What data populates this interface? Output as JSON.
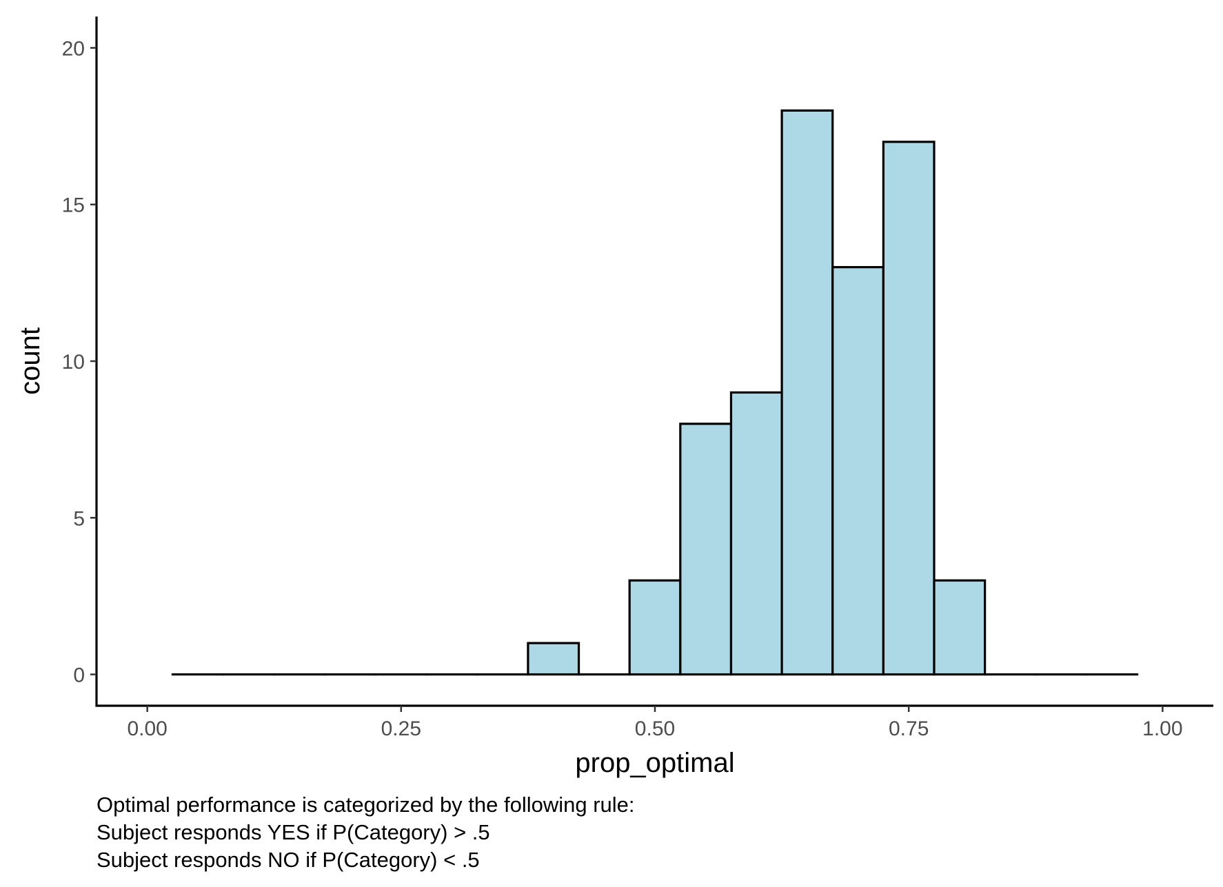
{
  "chart_data": {
    "type": "bar",
    "subtype": "histogram",
    "xlabel": "prop_optimal",
    "ylabel": "count",
    "binwidth": 0.05,
    "bins": [
      {
        "x0": 0.025,
        "x1": 0.075,
        "count": 0
      },
      {
        "x0": 0.075,
        "x1": 0.125,
        "count": 0
      },
      {
        "x0": 0.125,
        "x1": 0.175,
        "count": 0
      },
      {
        "x0": 0.175,
        "x1": 0.225,
        "count": 0
      },
      {
        "x0": 0.225,
        "x1": 0.275,
        "count": 0
      },
      {
        "x0": 0.275,
        "x1": 0.325,
        "count": 0
      },
      {
        "x0": 0.325,
        "x1": 0.375,
        "count": 0
      },
      {
        "x0": 0.375,
        "x1": 0.425,
        "count": 1
      },
      {
        "x0": 0.425,
        "x1": 0.475,
        "count": 0
      },
      {
        "x0": 0.475,
        "x1": 0.525,
        "count": 3
      },
      {
        "x0": 0.525,
        "x1": 0.575,
        "count": 8
      },
      {
        "x0": 0.575,
        "x1": 0.625,
        "count": 9
      },
      {
        "x0": 0.625,
        "x1": 0.675,
        "count": 18
      },
      {
        "x0": 0.675,
        "x1": 0.725,
        "count": 13
      },
      {
        "x0": 0.725,
        "x1": 0.775,
        "count": 17
      },
      {
        "x0": 0.775,
        "x1": 0.825,
        "count": 3
      },
      {
        "x0": 0.825,
        "x1": 0.875,
        "count": 0
      },
      {
        "x0": 0.875,
        "x1": 0.925,
        "count": 0
      },
      {
        "x0": 0.925,
        "x1": 0.975,
        "count": 0
      }
    ],
    "xlim": [
      -0.05,
      1.05
    ],
    "ylim": [
      -1,
      21
    ],
    "xticks": [
      0,
      0.25,
      0.5,
      0.75,
      1
    ],
    "xtick_labels": [
      "0.00",
      "0.25",
      "0.50",
      "0.75",
      "1.00"
    ],
    "yticks": [
      0,
      5,
      10,
      15,
      20
    ],
    "ytick_labels": [
      "0",
      "5",
      "10",
      "15",
      "20"
    ],
    "grid": false,
    "bar_fill": "#add8e6",
    "bar_outline": "#000000"
  },
  "caption": {
    "line1": "Optimal performance is categorized by the following rule:",
    "line2": "Subject responds YES if P(Category) > .5",
    "line3": "Subject responds NO if P(Category) < .5"
  }
}
